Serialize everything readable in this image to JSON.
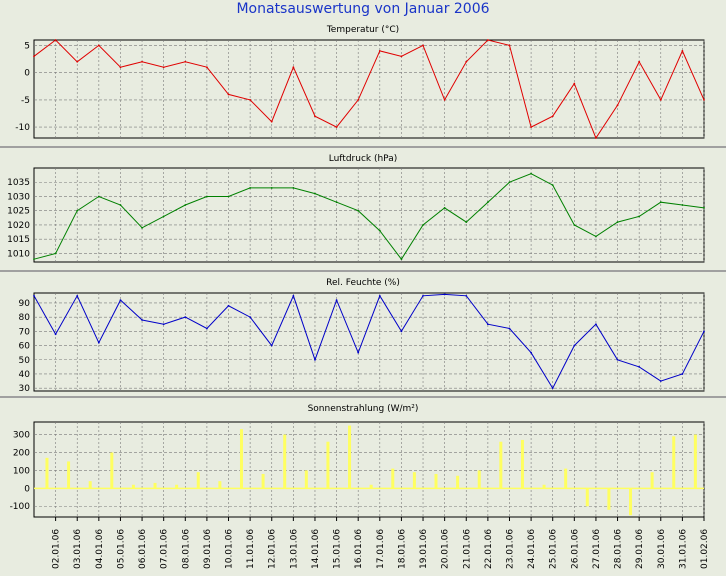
{
  "title": "Monatsauswertung von Januar 2006",
  "x_labels": [
    "02.01.06",
    "03.01.06",
    "04.01.06",
    "05.01.06",
    "06.01.06",
    "07.01.06",
    "08.01.06",
    "09.01.06",
    "10.01.06",
    "11.01.06",
    "12.01.06",
    "13.01.06",
    "14.01.06",
    "15.01.06",
    "16.01.06",
    "17.01.06",
    "18.01.06",
    "19.01.06",
    "20.01.06",
    "21.01.06",
    "22.01.06",
    "23.01.06",
    "24.01.06",
    "25.01.06",
    "26.01.06",
    "27.01.06",
    "28.01.06",
    "29.01.06",
    "30.01.06",
    "31.01.06",
    "01.02.06"
  ],
  "chart_data": [
    {
      "type": "line",
      "title": "Temperatur (°C)",
      "color": "#e00000",
      "ylim": [
        -12,
        6
      ],
      "yticks": [
        5,
        0,
        -5,
        -10
      ],
      "grid": true,
      "x": [
        1,
        2,
        3,
        4,
        5,
        6,
        7,
        8,
        9,
        10,
        11,
        12,
        13,
        14,
        15,
        16,
        17,
        18,
        19,
        20,
        21,
        22,
        23,
        24,
        25,
        26,
        27,
        28,
        29,
        30,
        31,
        32
      ],
      "values": [
        3,
        6,
        2,
        5,
        1,
        2,
        1,
        2,
        1,
        -4,
        -5,
        -9,
        1,
        -8,
        -10,
        -5,
        4,
        3,
        5,
        -5,
        2,
        6,
        5,
        -10,
        -8,
        -2,
        -12,
        -6,
        2,
        -5,
        4,
        -5
      ]
    },
    {
      "type": "line",
      "title": "Luftdruck (hPa)",
      "color": "#008000",
      "ylim": [
        1007,
        1040
      ],
      "yticks": [
        1035,
        1030,
        1025,
        1020,
        1015,
        1010
      ],
      "grid": true,
      "x": [
        1,
        2,
        3,
        4,
        5,
        6,
        7,
        8,
        9,
        10,
        11,
        12,
        13,
        14,
        15,
        16,
        17,
        18,
        19,
        20,
        21,
        22,
        23,
        24,
        25,
        26,
        27,
        28,
        29,
        30,
        31,
        32
      ],
      "values": [
        1008,
        1010,
        1025,
        1030,
        1027,
        1019,
        1023,
        1027,
        1030,
        1030,
        1033,
        1033,
        1033,
        1031,
        1028,
        1025,
        1018,
        1008,
        1020,
        1026,
        1021,
        1028,
        1035,
        1038,
        1034,
        1020,
        1016,
        1021,
        1023,
        1028,
        1027,
        1026
      ]
    },
    {
      "type": "line",
      "title": "Rel. Feuchte (%)",
      "color": "#0000c8",
      "ylim": [
        28,
        97
      ],
      "yticks": [
        90,
        80,
        70,
        60,
        50,
        40,
        30
      ],
      "grid": true,
      "x": [
        1,
        2,
        3,
        4,
        5,
        6,
        7,
        8,
        9,
        10,
        11,
        12,
        13,
        14,
        15,
        16,
        17,
        18,
        19,
        20,
        21,
        22,
        23,
        24,
        25,
        26,
        27,
        28,
        29,
        30,
        31,
        32
      ],
      "values": [
        95,
        68,
        95,
        62,
        92,
        78,
        75,
        80,
        72,
        88,
        80,
        60,
        95,
        50,
        92,
        55,
        95,
        70,
        95,
        96,
        95,
        75,
        72,
        55,
        30,
        60,
        75,
        50,
        45,
        35,
        40,
        70
      ]
    },
    {
      "type": "bar",
      "title": "Sonnenstrahlung (W/m²)",
      "color": "#ffff60",
      "ylim": [
        -160,
        370
      ],
      "yticks": [
        300,
        200,
        100,
        0,
        -100
      ],
      "grid": true,
      "x": [
        1.6,
        2.6,
        3.6,
        4.6,
        5.6,
        6.6,
        7.6,
        8.6,
        9.6,
        10.6,
        11.6,
        12.6,
        13.6,
        14.6,
        15.6,
        16.6,
        17.6,
        18.6,
        19.6,
        20.6,
        21.6,
        22.6,
        23.6,
        24.6,
        25.6,
        26.6,
        27.6,
        28.6,
        29.6,
        30.6,
        31.6
      ],
      "values": [
        170,
        150,
        40,
        200,
        20,
        30,
        20,
        90,
        40,
        330,
        80,
        300,
        100,
        260,
        350,
        20,
        110,
        90,
        80,
        70,
        100,
        260,
        270,
        20,
        110,
        -100,
        -120,
        -150,
        90,
        290,
        300
      ]
    }
  ]
}
